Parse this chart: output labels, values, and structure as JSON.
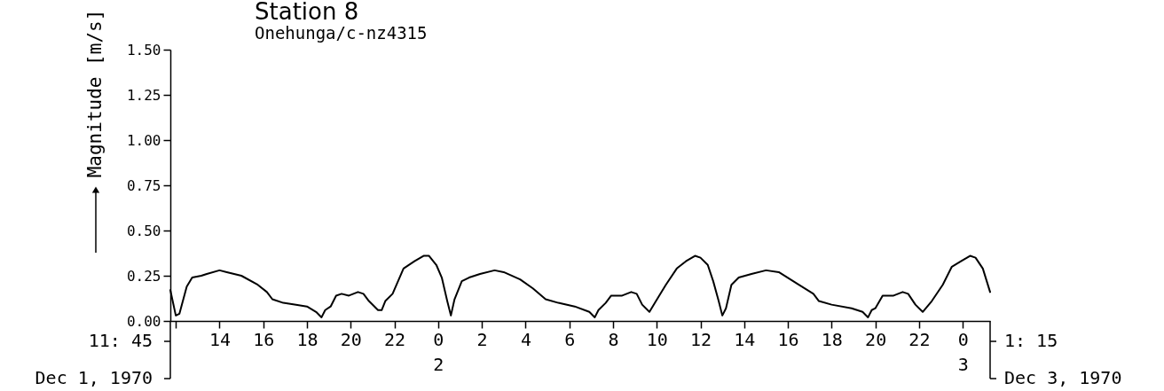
{
  "chart_data": {
    "type": "line",
    "title": "Station 8",
    "subtitle": "Onehunga/c-nz4315",
    "ylabel": "Magnitude [m/s]",
    "color": "#000000",
    "line_style": "solid",
    "x": [
      "1970-12-01T11:45",
      "1970-12-01T12:00",
      "1970-12-01T12:10",
      "1970-12-01T12:30",
      "1970-12-01T12:45",
      "1970-12-01T13:10",
      "1970-12-01T13:25",
      "1970-12-01T14:00",
      "1970-12-01T14:20",
      "1970-12-01T15:00",
      "1970-12-01T15:45",
      "1970-12-01T16:10",
      "1970-12-01T16:25",
      "1970-12-01T16:55",
      "1970-12-01T17:30",
      "1970-12-01T18:00",
      "1970-12-01T18:25",
      "1970-12-01T18:40",
      "1970-12-01T18:50",
      "1970-12-01T19:05",
      "1970-12-01T19:20",
      "1970-12-01T19:35",
      "1970-12-01T19:55",
      "1970-12-01T20:20",
      "1970-12-01T20:35",
      "1970-12-01T20:50",
      "1970-12-01T21:15",
      "1970-12-01T21:25",
      "1970-12-01T21:35",
      "1970-12-01T21:55",
      "1970-12-01T22:25",
      "1970-12-01T22:55",
      "1970-12-01T23:20",
      "1970-12-01T23:35",
      "1970-12-01T23:55",
      "1970-12-02T00:10",
      "1970-12-02T00:25",
      "1970-12-02T00:35",
      "1970-12-02T00:45",
      "1970-12-02T01:05",
      "1970-12-02T01:25",
      "1970-12-02T01:55",
      "1970-12-02T02:35",
      "1970-12-02T03:00",
      "1970-12-02T03:45",
      "1970-12-02T04:20",
      "1970-12-02T04:55",
      "1970-12-02T05:30",
      "1970-12-02T06:15",
      "1970-12-02T06:55",
      "1970-12-02T07:10",
      "1970-12-02T07:20",
      "1970-12-02T07:40",
      "1970-12-02T07:55",
      "1970-12-02T08:25",
      "1970-12-02T08:50",
      "1970-12-02T09:05",
      "1970-12-02T09:20",
      "1970-12-02T09:40",
      "1970-12-02T09:55",
      "1970-12-02T10:25",
      "1970-12-02T10:55",
      "1970-12-02T11:20",
      "1970-12-02T11:45",
      "1970-12-02T12:00",
      "1970-12-02T12:20",
      "1970-12-02T12:35",
      "1970-12-02T12:50",
      "1970-12-02T13:00",
      "1970-12-02T13:10",
      "1970-12-02T13:25",
      "1970-12-02T13:45",
      "1970-12-02T14:20",
      "1970-12-02T15:00",
      "1970-12-02T15:35",
      "1970-12-02T16:30",
      "1970-12-02T17:10",
      "1970-12-02T17:25",
      "1970-12-02T18:00",
      "1970-12-02T18:55",
      "1970-12-02T19:25",
      "1970-12-02T19:40",
      "1970-12-02T19:50",
      "1970-12-02T20:00",
      "1970-12-02T20:20",
      "1970-12-02T20:50",
      "1970-12-02T21:15",
      "1970-12-02T21:30",
      "1970-12-02T21:50",
      "1970-12-02T22:10",
      "1970-12-02T22:35",
      "1970-12-02T23:05",
      "1970-12-02T23:30",
      "1970-12-02T23:55",
      "1970-12-03T00:20",
      "1970-12-03T00:35",
      "1970-12-03T00:55",
      "1970-12-03T01:15"
    ],
    "values": [
      0.17,
      0.03,
      0.04,
      0.19,
      0.24,
      0.25,
      0.26,
      0.28,
      0.27,
      0.25,
      0.2,
      0.16,
      0.12,
      0.1,
      0.09,
      0.08,
      0.05,
      0.02,
      0.06,
      0.08,
      0.14,
      0.15,
      0.14,
      0.16,
      0.15,
      0.11,
      0.06,
      0.06,
      0.11,
      0.15,
      0.29,
      0.33,
      0.36,
      0.36,
      0.31,
      0.24,
      0.11,
      0.03,
      0.12,
      0.22,
      0.24,
      0.26,
      0.28,
      0.27,
      0.23,
      0.18,
      0.12,
      0.1,
      0.08,
      0.05,
      0.02,
      0.06,
      0.1,
      0.14,
      0.14,
      0.16,
      0.15,
      0.09,
      0.05,
      0.1,
      0.2,
      0.29,
      0.33,
      0.36,
      0.35,
      0.31,
      0.22,
      0.11,
      0.03,
      0.07,
      0.2,
      0.24,
      0.26,
      0.28,
      0.27,
      0.2,
      0.15,
      0.11,
      0.09,
      0.07,
      0.05,
      0.02,
      0.06,
      0.07,
      0.14,
      0.14,
      0.16,
      0.15,
      0.09,
      0.05,
      0.11,
      0.2,
      0.3,
      0.33,
      0.36,
      0.35,
      0.29,
      0.16
    ],
    "xlim": [
      "1970-12-01T11:45",
      "1970-12-03T01:15"
    ],
    "xticks": [
      {
        "value": "1970-12-01T12:00",
        "label": null
      },
      {
        "value": "1970-12-01T14:00",
        "label": "14"
      },
      {
        "value": "1970-12-01T16:00",
        "label": "16"
      },
      {
        "value": "1970-12-01T18:00",
        "label": "18"
      },
      {
        "value": "1970-12-01T20:00",
        "label": "20"
      },
      {
        "value": "1970-12-01T22:00",
        "label": "22"
      },
      {
        "value": "1970-12-02T00:00",
        "label": "0\n2"
      },
      {
        "value": "1970-12-02T02:00",
        "label": "2"
      },
      {
        "value": "1970-12-02T04:00",
        "label": "4"
      },
      {
        "value": "1970-12-02T06:00",
        "label": "6"
      },
      {
        "value": "1970-12-02T08:00",
        "label": "8"
      },
      {
        "value": "1970-12-02T10:00",
        "label": "10"
      },
      {
        "value": "1970-12-02T12:00",
        "label": "12"
      },
      {
        "value": "1970-12-02T14:00",
        "label": "14"
      },
      {
        "value": "1970-12-02T16:00",
        "label": "16"
      },
      {
        "value": "1970-12-02T18:00",
        "label": "18"
      },
      {
        "value": "1970-12-02T20:00",
        "label": "20"
      },
      {
        "value": "1970-12-02T22:00",
        "label": "22"
      },
      {
        "value": "1970-12-03T00:00",
        "label": "0\n3"
      }
    ],
    "ylim": [
      0,
      1.5
    ],
    "yticks": [
      {
        "value": 0,
        "label": "0.00"
      },
      {
        "value": 0.25,
        "label": "0.25"
      },
      {
        "value": 0.5,
        "label": "0.50"
      },
      {
        "value": 0.75,
        "label": "0.75"
      },
      {
        "value": 1,
        "label": "1.00"
      },
      {
        "value": 1.25,
        "label": "1.25"
      },
      {
        "value": 1.5,
        "label": "1.50"
      }
    ],
    "annotations": [
      "11: 45",
      "Dec 1, 1970",
      "1: 15",
      "Dec 3, 1970"
    ]
  }
}
